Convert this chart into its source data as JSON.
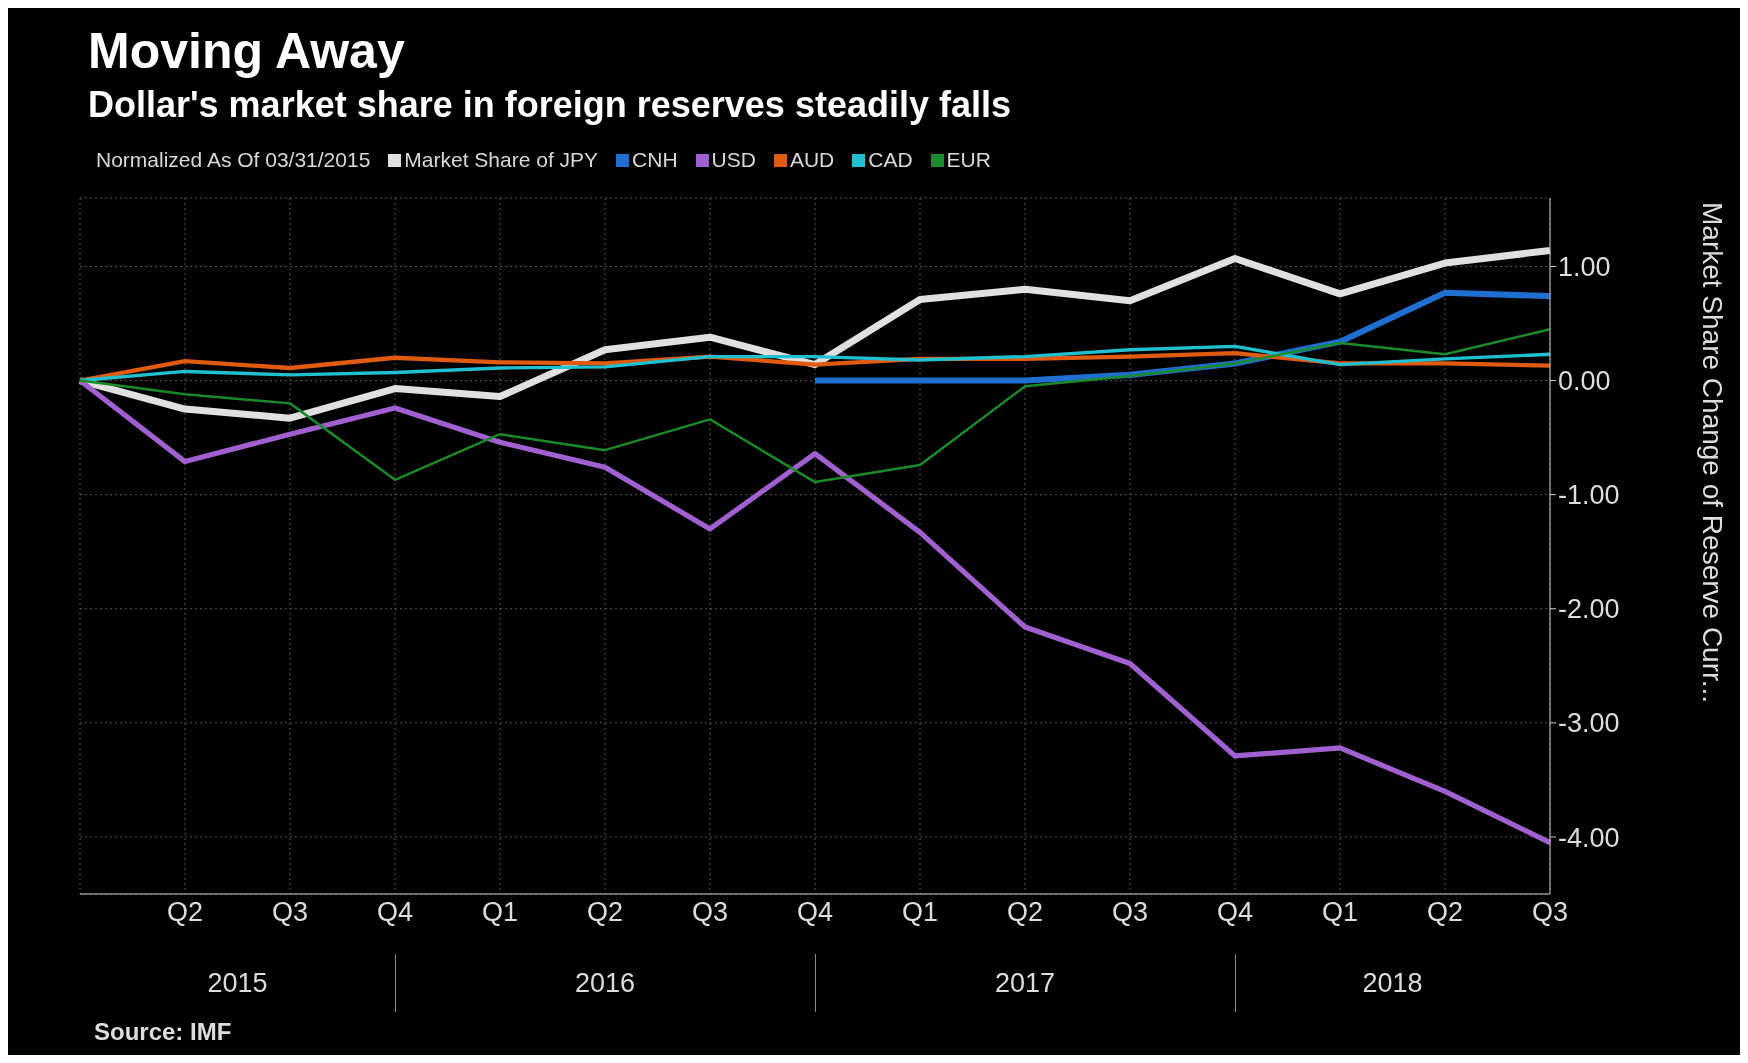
{
  "chart_data": {
    "type": "line",
    "title": "Moving Away",
    "subtitle": "Dollar's market share in foreign reserves steadily falls",
    "legend_title": "Normalized As Of 03/31/2015",
    "ylabel": "Market Share Change of Reserve Curr...",
    "categories": [
      null,
      "Q2",
      "Q3",
      "Q4",
      "Q1",
      "Q2",
      "Q3",
      "Q4",
      "Q1",
      "Q2",
      "Q3",
      "Q4",
      "Q1",
      "Q2",
      "Q3"
    ],
    "series": [
      {
        "name": "Market Share of JPY",
        "color": "#e0e0e0",
        "values": [
          0,
          -0.25,
          -0.33,
          -0.07,
          -0.14,
          0.27,
          0.38,
          0.14,
          0.71,
          0.8,
          0.7,
          1.07,
          0.76,
          1.03,
          1.14
        ]
      },
      {
        "name": "CNH",
        "color": "#1f6fd0",
        "values": [
          null,
          null,
          null,
          null,
          null,
          null,
          null,
          0,
          0,
          0,
          0.05,
          0.15,
          0.34,
          0.77,
          0.74
        ]
      },
      {
        "name": "USD",
        "color": "#a060d0",
        "values": [
          0,
          -0.71,
          -0.47,
          -0.24,
          -0.54,
          -0.76,
          -1.3,
          -0.64,
          -1.33,
          -2.16,
          -2.48,
          -3.29,
          -3.22,
          -3.6,
          -4.05
        ]
      },
      {
        "name": "AUD",
        "color": "#e05a10",
        "values": [
          0,
          0.17,
          0.11,
          0.2,
          0.16,
          0.15,
          0.21,
          0.14,
          0.19,
          0.19,
          0.21,
          0.24,
          0.15,
          0.15,
          0.13
        ]
      },
      {
        "name": "CAD",
        "color": "#20c0d0",
        "values": [
          0,
          0.08,
          0.05,
          0.07,
          0.11,
          0.12,
          0.21,
          0.21,
          0.18,
          0.21,
          0.27,
          0.3,
          0.14,
          0.19,
          0.23
        ]
      },
      {
        "name": "EUR",
        "color": "#1a8a2a",
        "values": [
          0,
          -0.12,
          -0.2,
          -0.87,
          -0.47,
          -0.61,
          -0.34,
          -0.89,
          -0.74,
          -0.05,
          0.04,
          0.15,
          0.33,
          0.23,
          0.45
        ]
      }
    ],
    "ylim": [
      -4.5,
      1.6
    ],
    "yticks": [
      {
        "value": 1,
        "label": "1.00"
      },
      {
        "value": 0,
        "label": "0.00"
      },
      {
        "value": -1,
        "label": "-1.00"
      },
      {
        "value": -2,
        "label": "-2.00"
      },
      {
        "value": -3,
        "label": "-3.00"
      },
      {
        "value": -4,
        "label": "-4.00"
      }
    ],
    "grid": true,
    "legend": "top left",
    "marker": "none",
    "line_style": "solid",
    "annotations": [
      "2015",
      "2016",
      "2017",
      "2018",
      "Source: IMF"
    ]
  }
}
